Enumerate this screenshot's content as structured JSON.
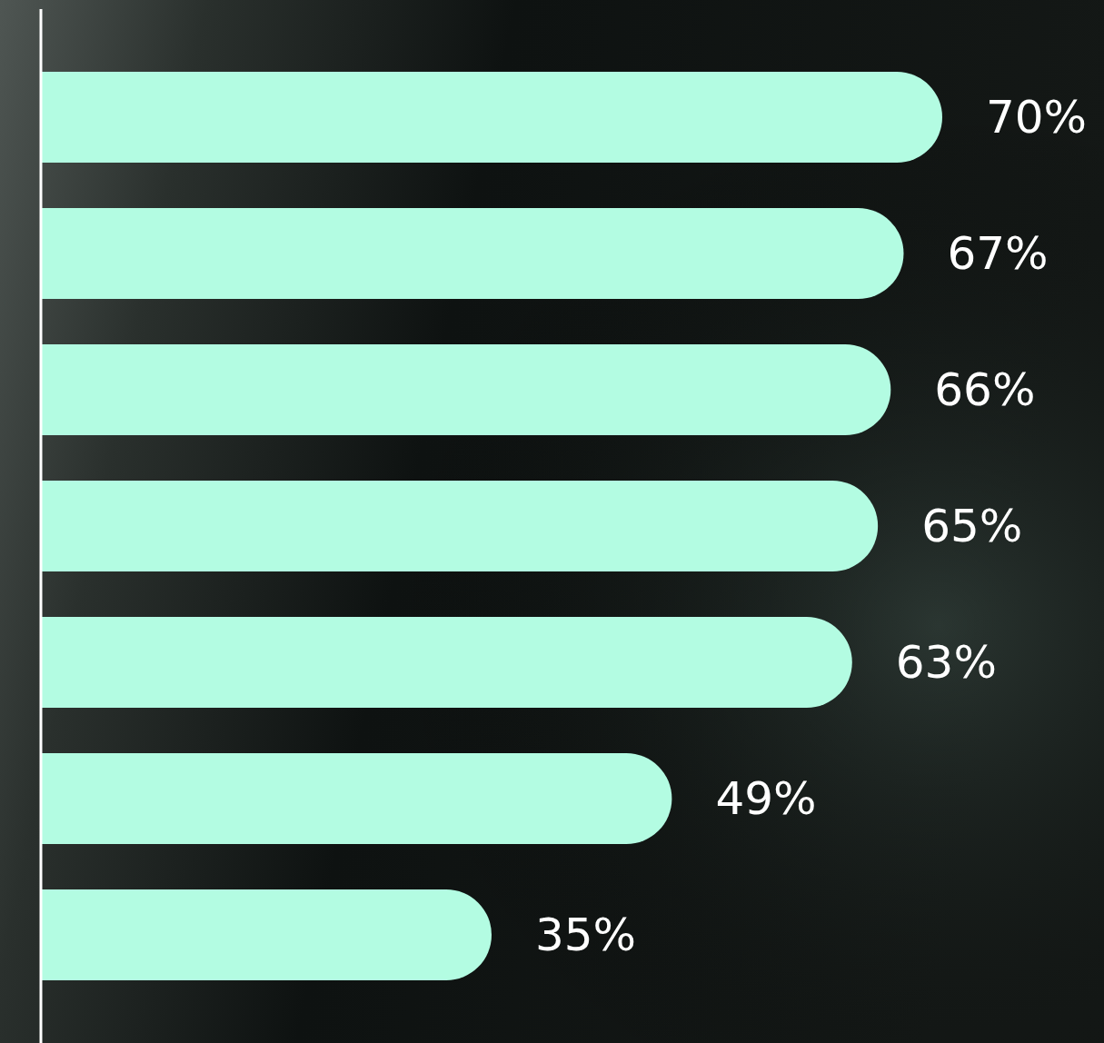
{
  "chart_data": {
    "type": "bar",
    "orientation": "horizontal",
    "categories": [
      null,
      null,
      null,
      null,
      null,
      null,
      null
    ],
    "values": [
      70,
      67,
      66,
      65,
      63,
      49,
      35
    ],
    "value_labels": [
      "70%",
      "67%",
      "66%",
      "65%",
      "63%",
      "49%",
      "35%"
    ],
    "color": "#b3fce2",
    "data_labels": true,
    "tick_labels": false,
    "grid": false
  }
}
